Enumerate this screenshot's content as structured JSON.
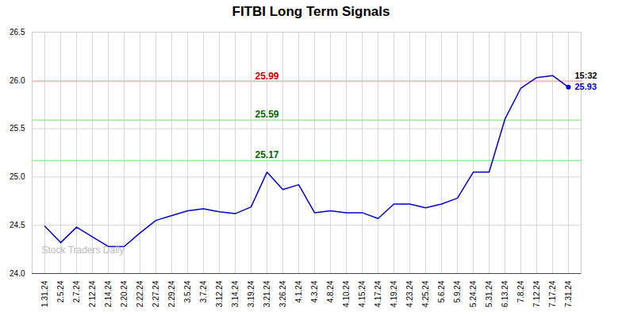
{
  "chart_data": {
    "type": "line",
    "title": "FITBI Long Term Signals",
    "categories": [
      "1.31.24",
      "2.5.24",
      "2.7.24",
      "2.12.24",
      "2.14.24",
      "2.20.24",
      "2.22.24",
      "2.27.24",
      "2.29.24",
      "3.5.24",
      "3.7.24",
      "3.12.24",
      "3.14.24",
      "3.19.24",
      "3.21.24",
      "3.26.24",
      "4.1.24",
      "4.3.24",
      "4.8.24",
      "4.10.24",
      "4.15.24",
      "4.17.24",
      "4.19.24",
      "4.23.24",
      "4.25.24",
      "5.6.24",
      "5.9.24",
      "5.24.24",
      "5.31.24",
      "6.13.24",
      "7.8.24",
      "7.12.24",
      "7.17.24",
      "7.31.24"
    ],
    "values": [
      24.49,
      24.32,
      24.48,
      24.38,
      24.28,
      24.28,
      24.42,
      24.55,
      24.6,
      24.65,
      24.67,
      24.64,
      24.62,
      24.69,
      25.05,
      24.87,
      24.92,
      24.63,
      24.65,
      24.63,
      24.63,
      24.57,
      24.72,
      24.72,
      24.68,
      24.72,
      24.78,
      25.05,
      25.05,
      25.6,
      25.92,
      26.03,
      26.05,
      25.93
    ],
    "color": "#0000cc",
    "ylim": [
      24.0,
      26.5
    ],
    "yticks": [
      {
        "value": 24.0,
        "label": "24.0"
      },
      24.5,
      {
        "value": 25.0,
        "label": "25.0"
      },
      25.5,
      {
        "value": 26.0,
        "label": "26.0"
      },
      26.5
    ],
    "grid": true,
    "hlines": [
      {
        "value": 25.99,
        "color": "#ffbbbb",
        "label": "25.99",
        "label_color": "#cc0000"
      },
      {
        "value": 25.59,
        "color": "#99ee99",
        "label": "25.59",
        "label_color": "#006600"
      },
      {
        "value": 25.17,
        "color": "#99ee99",
        "label": "25.17",
        "label_color": "#006600"
      }
    ],
    "last_point": {
      "label": "15:32",
      "value_label": "25.93",
      "color": "#0000cc"
    },
    "watermark": {
      "text": "Stock Traders Daily",
      "color": "#bbbbbb"
    }
  }
}
